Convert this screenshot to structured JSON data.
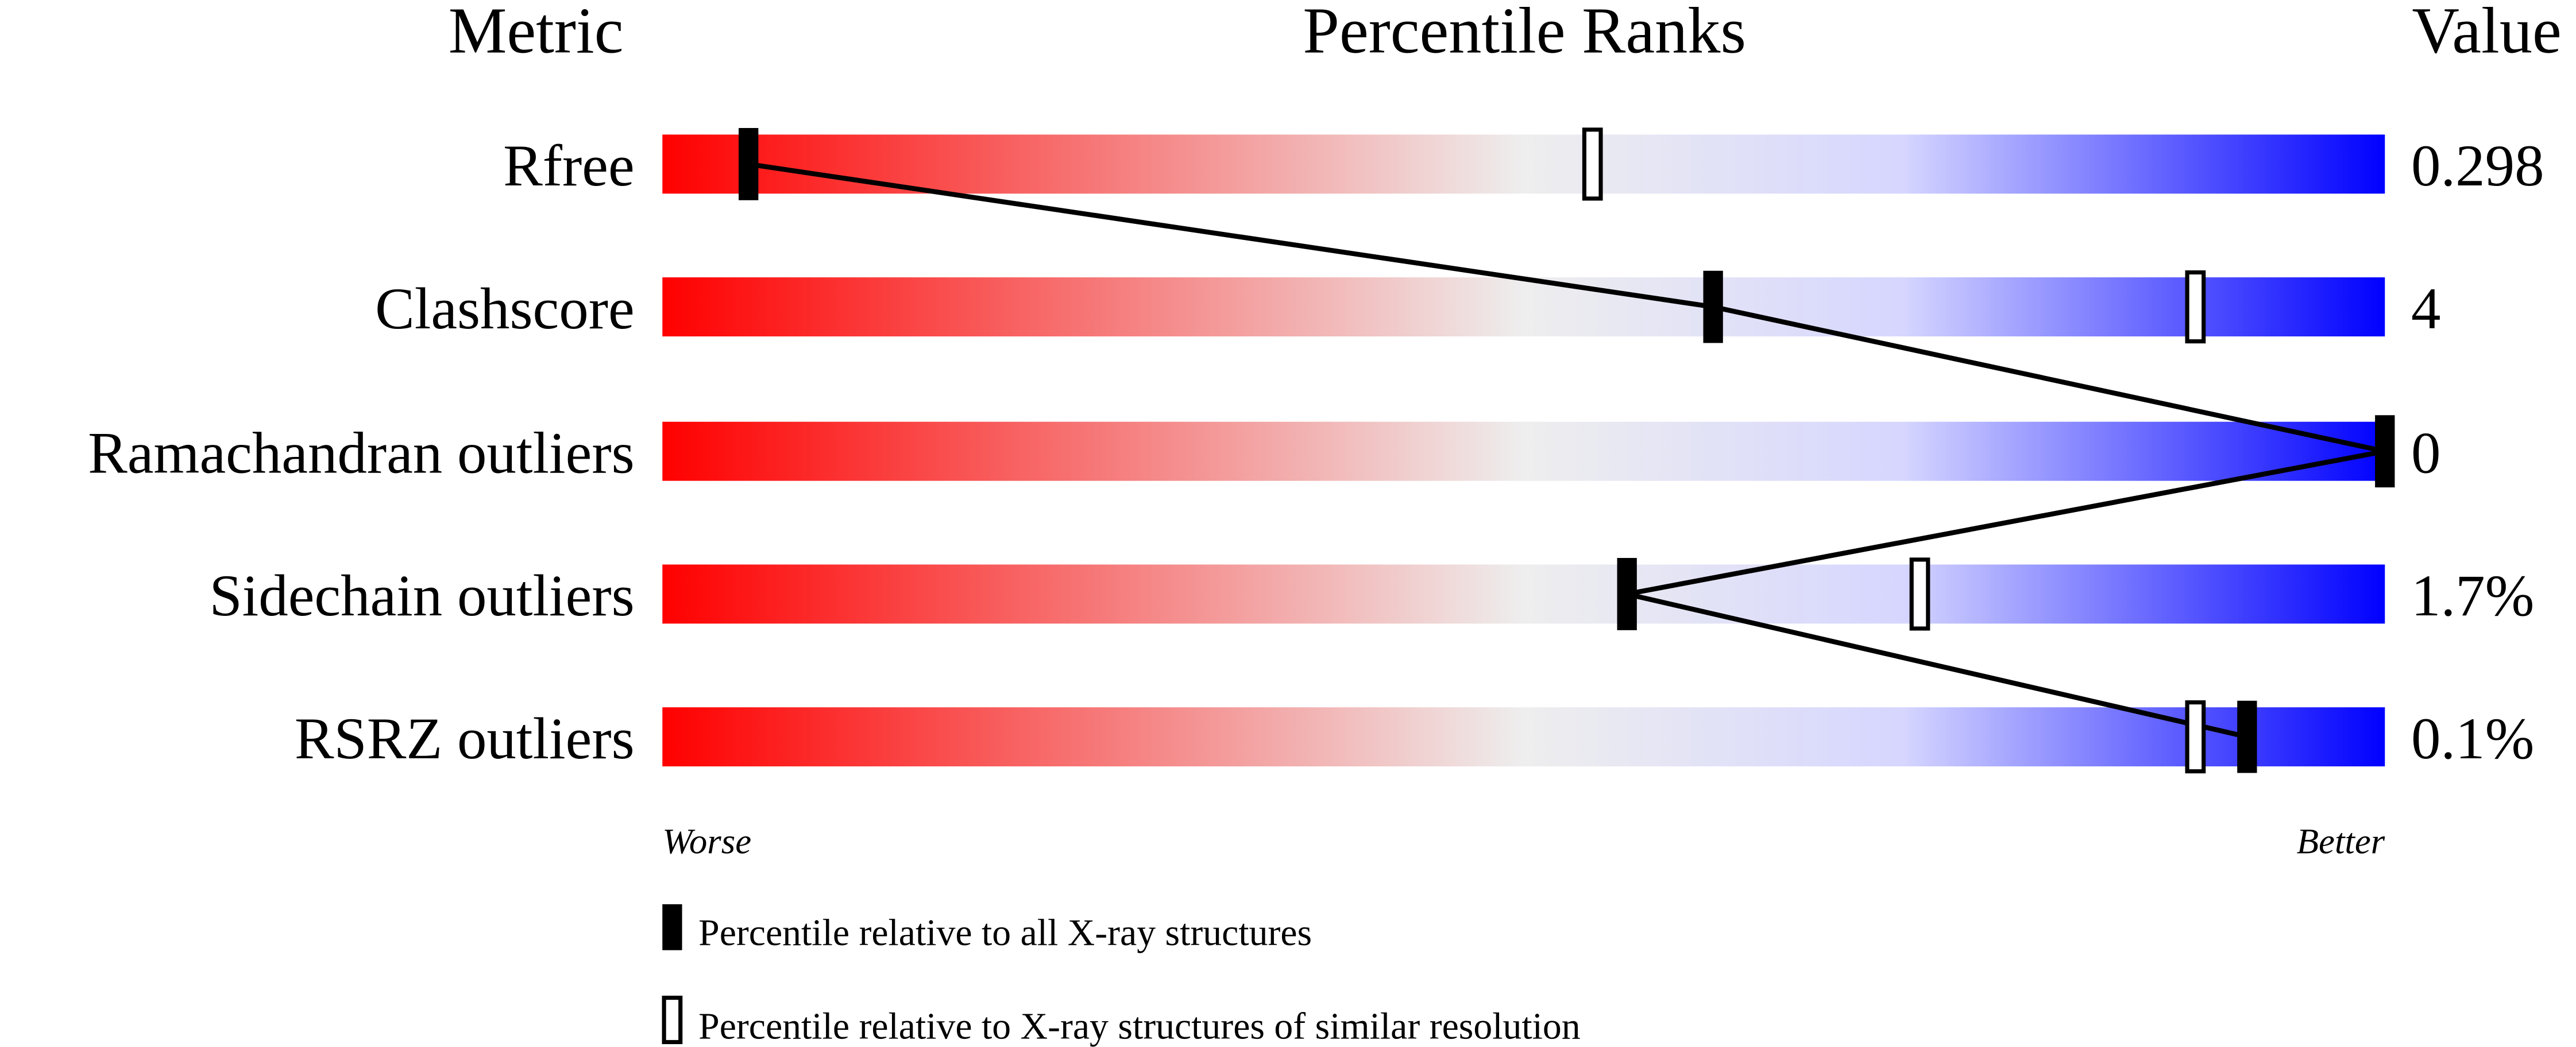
{
  "chart_data": {
    "type": "percentile-slider",
    "headers": {
      "metric": "Metric",
      "ranks": "Percentile Ranks",
      "value": "Value"
    },
    "xlim": [
      0,
      100
    ],
    "axis_labels": {
      "left": "Worse",
      "right": "Better"
    },
    "gradient_colors": [
      "#ff0000",
      "#eeeeee",
      "#d6d6ff",
      "#0000ff"
    ],
    "rows": [
      {
        "metric": "Rfree",
        "value": "0.298",
        "percentile_all": 5,
        "percentile_similar": 54
      },
      {
        "metric": "Clashscore",
        "value": "4",
        "percentile_all": 61,
        "percentile_similar": 89
      },
      {
        "metric": "Ramachandran outliers",
        "value": "0",
        "percentile_all": 100,
        "percentile_similar": null
      },
      {
        "metric": "Sidechain outliers",
        "value": "1.7%",
        "percentile_all": 56,
        "percentile_similar": 73
      },
      {
        "metric": "RSRZ outliers",
        "value": "0.1%",
        "percentile_all": 92,
        "percentile_similar": 89
      }
    ],
    "legend": [
      {
        "marker": "filled",
        "label": "Percentile relative to all X-ray structures"
      },
      {
        "marker": "open",
        "label": "Percentile relative to X-ray structures of similar resolution"
      }
    ]
  }
}
